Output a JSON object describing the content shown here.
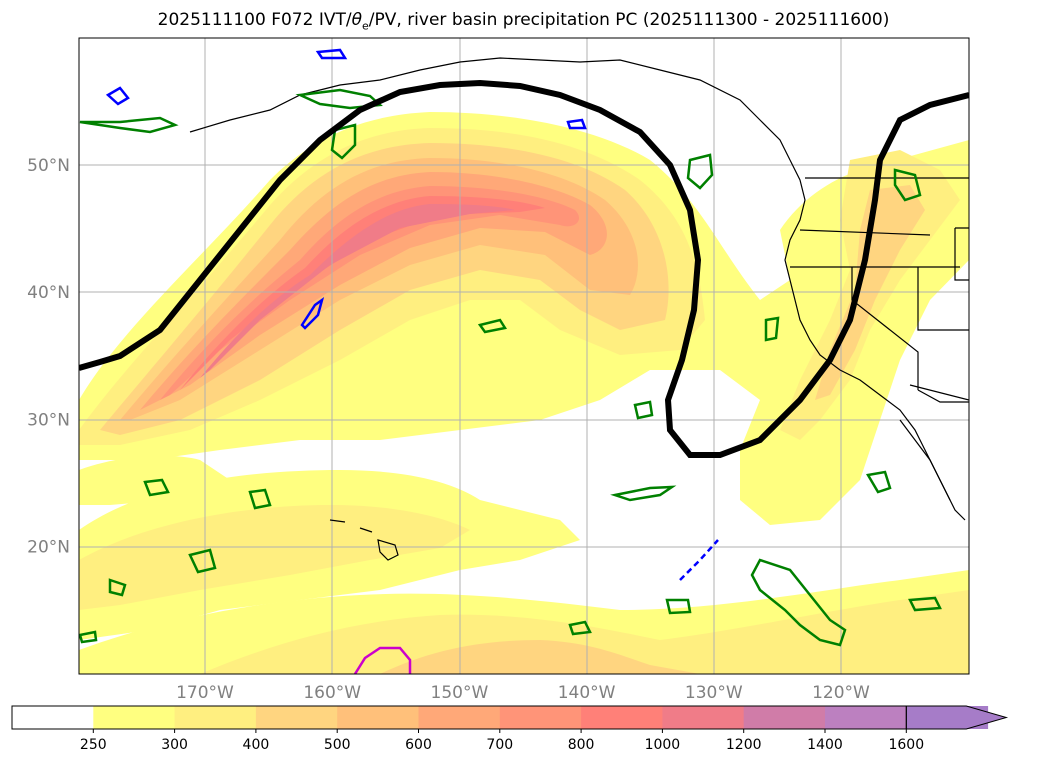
{
  "title": {
    "prefix": "2025111100 F072 IVT/",
    "theta": "θ",
    "theta_sub": "e",
    "suffix": "/PV, river basin precipitation PC (2025111300 - 2025111600)"
  },
  "axes": {
    "lon_ticks": [
      {
        "lon": -170,
        "label": "170°W"
      },
      {
        "lon": -160,
        "label": "160°W"
      },
      {
        "lon": -150,
        "label": "150°W"
      },
      {
        "lon": -140,
        "label": "140°W"
      },
      {
        "lon": -130,
        "label": "130°W"
      },
      {
        "lon": -120,
        "label": "120°W"
      }
    ],
    "lat_ticks": [
      {
        "lat": 50,
        "label": "50°N"
      },
      {
        "lat": 40,
        "label": "40°N"
      },
      {
        "lat": 30,
        "label": "30°N"
      },
      {
        "lat": 20,
        "label": "20°N"
      }
    ],
    "lon_range": [
      -180,
      -110
    ],
    "lat_range": [
      10,
      60
    ]
  },
  "colorbar": {
    "levels": [
      "250",
      "300",
      "400",
      "500",
      "600",
      "700",
      "800",
      "1000",
      "1200",
      "1400",
      "1600"
    ],
    "colors": [
      "#ffffff",
      "#ffff80",
      "#ffef80",
      "#ffd580",
      "#ffc07a",
      "#ffa878",
      "#ff9478",
      "#ff8078",
      "#f07c88",
      "#d07ca8",
      "#bc80c0",
      "#a67cc8"
    ],
    "extend": "max"
  },
  "legend_colors": {
    "pv_positive": "#008000",
    "pv_negative": "#0000ff",
    "theta_e": "#000000",
    "magenta": "#cc00cc",
    "coast": "#000000"
  }
}
